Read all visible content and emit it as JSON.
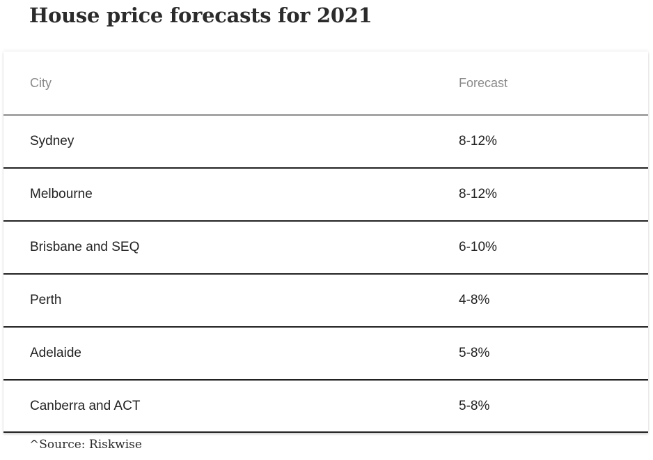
{
  "title": "House price forecasts for 2021",
  "table": {
    "headers": {
      "city": "City",
      "forecast": "Forecast"
    },
    "rows": [
      {
        "city": "Sydney",
        "forecast": "8-12%"
      },
      {
        "city": "Melbourne",
        "forecast": "8-12%"
      },
      {
        "city": "Brisbane and SEQ",
        "forecast": "6-10%"
      },
      {
        "city": "Perth",
        "forecast": "4-8%"
      },
      {
        "city": "Adelaide",
        "forecast": "5-8%"
      },
      {
        "city": "Canberra and ACT",
        "forecast": "5-8%"
      }
    ]
  },
  "source": "^Source: Riskwise"
}
